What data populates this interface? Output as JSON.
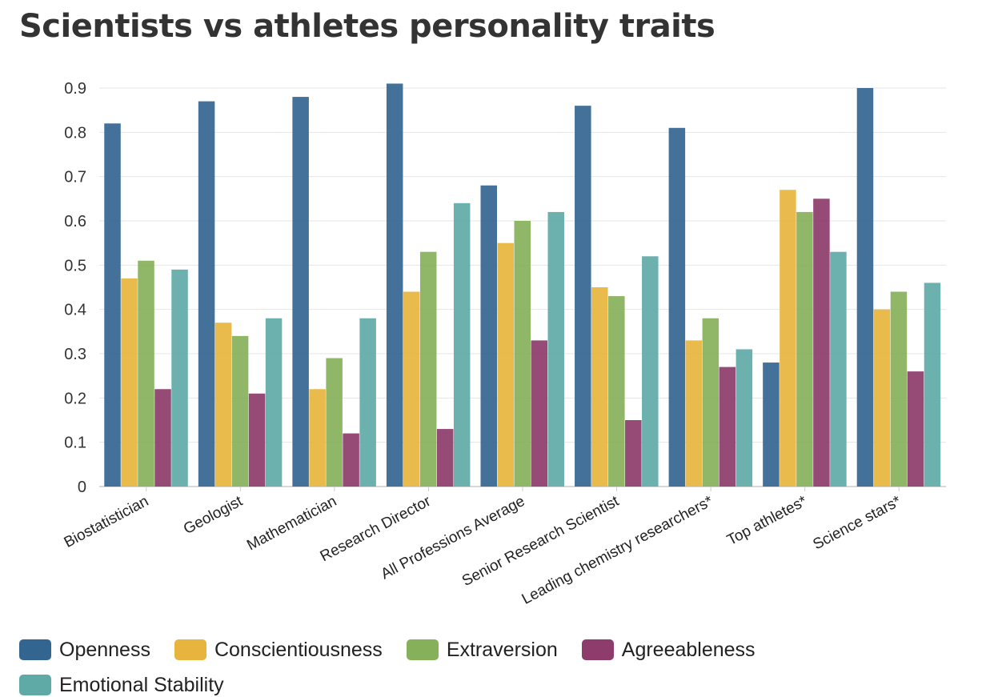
{
  "chart_data": {
    "type": "bar",
    "title": "Scientists vs athletes personality traits",
    "xlabel": "",
    "ylabel": "",
    "ylim": [
      0,
      0.92
    ],
    "yticks": [
      "0",
      "0.1",
      "0.2",
      "0.3",
      "0.4",
      "0.5",
      "0.6",
      "0.7",
      "0.8",
      "0.9"
    ],
    "grid": true,
    "legend_position": "bottom-left",
    "categories": [
      "Biostatistician",
      "Geologist",
      "Mathematician",
      "Research Director",
      "All Professions Average",
      "Senior Research Scientist",
      "Leading chemistry researchers*",
      "Top athletes*",
      "Science stars*"
    ],
    "series": [
      {
        "name": "Openness",
        "color": "#336591",
        "values": [
          0.82,
          0.87,
          0.88,
          0.91,
          0.68,
          0.86,
          0.81,
          0.28,
          0.9
        ]
      },
      {
        "name": "Conscientiousness",
        "color": "#e7b53e",
        "values": [
          0.47,
          0.37,
          0.22,
          0.44,
          0.55,
          0.45,
          0.33,
          0.67,
          0.4
        ]
      },
      {
        "name": "Extraversion",
        "color": "#87b05a",
        "values": [
          0.51,
          0.34,
          0.29,
          0.53,
          0.6,
          0.43,
          0.38,
          0.62,
          0.44
        ]
      },
      {
        "name": "Agreeableness",
        "color": "#8d3c6b",
        "values": [
          0.22,
          0.21,
          0.12,
          0.13,
          0.33,
          0.15,
          0.27,
          0.65,
          0.26
        ]
      },
      {
        "name": "Emotional Stability",
        "color": "#5faaa6",
        "values": [
          0.49,
          0.38,
          0.38,
          0.64,
          0.62,
          0.52,
          0.31,
          0.53,
          0.46
        ]
      }
    ]
  }
}
